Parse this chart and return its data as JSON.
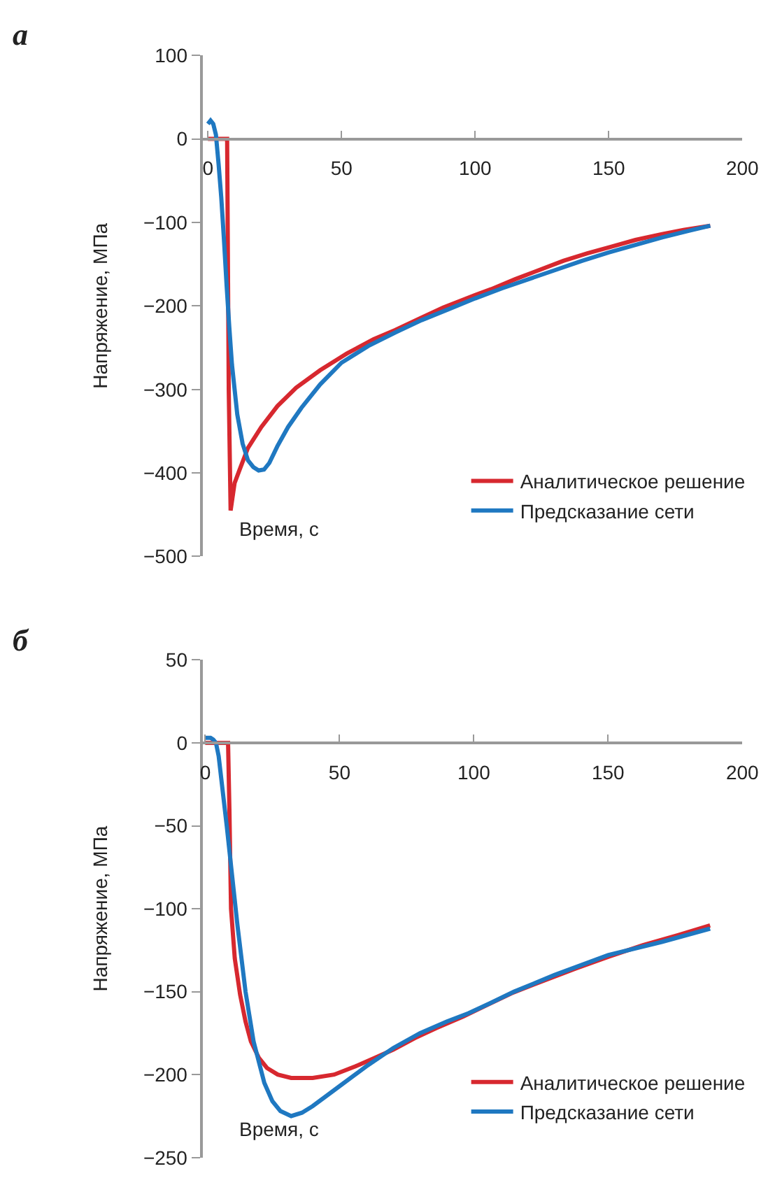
{
  "chart_data": [
    {
      "type": "line",
      "title": "а",
      "xlabel": "Время, с",
      "ylabel": "Напряжение, МПа",
      "xlim": [
        -2,
        200
      ],
      "xticks": [
        0,
        50,
        100,
        150,
        200
      ],
      "ylim": [
        -500,
        100
      ],
      "yticks": [
        -500,
        -400,
        -300,
        -200,
        -100,
        0,
        100
      ],
      "legend": "bottom right",
      "line_style": "solid",
      "marker": "none",
      "series": [
        {
          "name": "Аналитическое решение",
          "color": "#d7282f",
          "x": [
            0,
            4,
            7.2,
            7.8,
            8.5,
            10,
            12,
            15,
            20,
            26,
            33,
            42,
            52,
            62,
            70,
            80,
            88,
            100,
            106,
            115,
            124,
            133,
            142,
            151,
            160,
            170,
            178,
            188
          ],
          "values": [
            0,
            0,
            0,
            -300,
            -445,
            -412,
            -395,
            -370,
            -345,
            -320,
            -298,
            -277,
            -257,
            -240,
            -229,
            -214,
            -202,
            -187,
            -180,
            -168,
            -157,
            -146,
            -137,
            -129,
            -121,
            -114,
            -109,
            -104
          ]
        },
        {
          "name": "Предсказание сети",
          "color": "#1f78c1",
          "x": [
            0,
            1,
            2,
            3,
            4,
            5,
            6,
            7,
            8,
            9,
            11,
            13,
            15,
            17,
            19,
            21,
            23,
            26,
            30,
            35,
            42,
            50,
            60,
            70,
            80,
            90,
            100,
            110,
            120,
            130,
            140,
            150,
            160,
            170,
            180,
            188
          ],
          "values": [
            18,
            22,
            18,
            5,
            -30,
            -70,
            -120,
            -175,
            -225,
            -270,
            -330,
            -365,
            -385,
            -393,
            -397,
            -396,
            -388,
            -368,
            -345,
            -322,
            -294,
            -268,
            -248,
            -232,
            -217,
            -204,
            -191,
            -179,
            -168,
            -157,
            -146,
            -136,
            -127,
            -118,
            -110,
            -104
          ]
        }
      ]
    },
    {
      "type": "line",
      "title": "б",
      "xlabel": "Время, с",
      "ylabel": "Напряжение, МПа",
      "xlim": [
        -1,
        200
      ],
      "xticks": [
        0,
        50,
        100,
        150,
        200
      ],
      "ylim": [
        -250,
        50
      ],
      "yticks": [
        -250,
        -200,
        -150,
        -100,
        -50,
        0,
        50
      ],
      "legend": "bottom right",
      "line_style": "solid",
      "marker": "none",
      "series": [
        {
          "name": "Аналитическое решение",
          "color": "#d7282f",
          "x": [
            0,
            5,
            8.5,
            9,
            9.6,
            11,
            13,
            15,
            17,
            20,
            23,
            27,
            32,
            40,
            48,
            56,
            63,
            70,
            78,
            86,
            96,
            105,
            114,
            125,
            138,
            150,
            163,
            176,
            188
          ],
          "values": [
            0,
            0,
            0,
            -40,
            -100,
            -130,
            -152,
            -168,
            -180,
            -190,
            -196,
            -200,
            -202,
            -202,
            -200,
            -195,
            -190,
            -185,
            -178,
            -172,
            -165,
            -158,
            -151,
            -144,
            -136,
            -129,
            -122,
            -116,
            -110
          ]
        },
        {
          "name": "Предсказание сети",
          "color": "#1f78c1",
          "x": [
            0,
            2,
            3,
            4,
            5,
            6,
            8,
            10,
            12,
            15,
            18,
            22,
            25,
            28,
            32,
            36,
            40,
            45,
            50,
            60,
            70,
            80,
            90,
            98,
            106,
            115,
            130,
            150,
            170,
            188
          ],
          "values": [
            3,
            3,
            2,
            0,
            -8,
            -22,
            -50,
            -80,
            -110,
            -150,
            -180,
            -205,
            -216,
            -222,
            -225,
            -223,
            -219,
            -213,
            -207,
            -195,
            -184,
            -175,
            -168,
            -163,
            -157,
            -150,
            -140,
            -128,
            -120,
            -112
          ]
        }
      ]
    }
  ]
}
